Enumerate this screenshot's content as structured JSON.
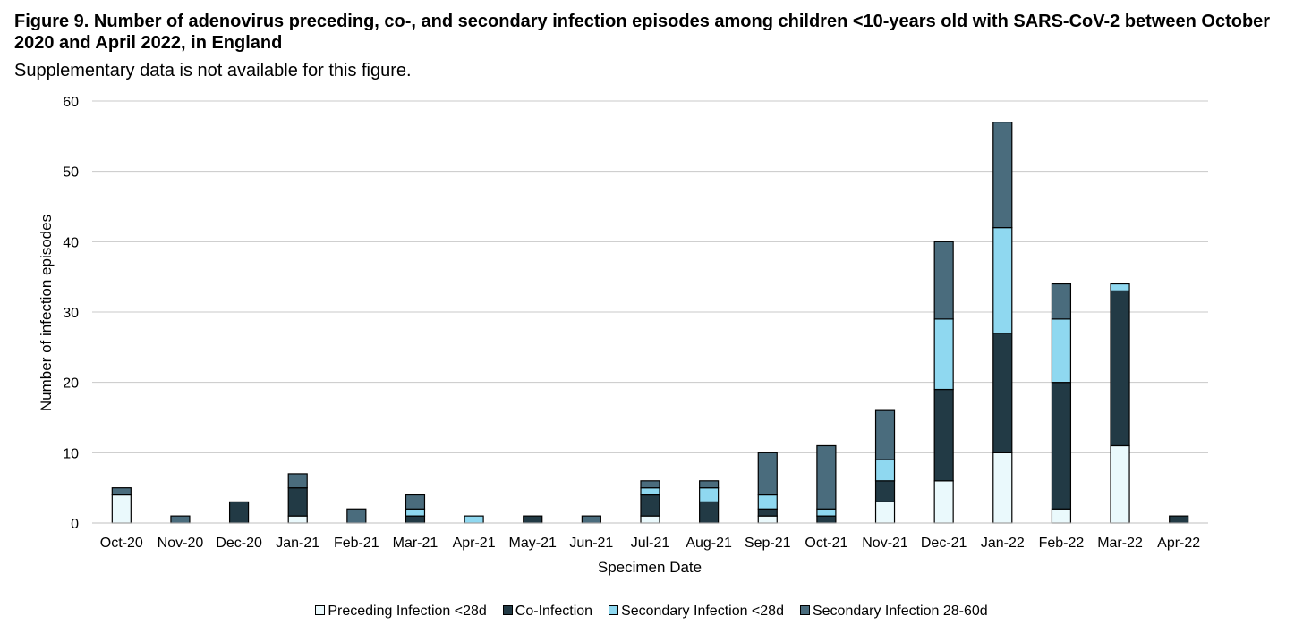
{
  "title": "Figure 9. Number of adenovirus preceding, co-, and secondary infection episodes among children <10-years old with SARS-CoV-2 between October 2020 and April 2022, in England",
  "subtitle": "Supplementary data is not available for this figure.",
  "chart_data": {
    "type": "bar",
    "stacked": true,
    "xlabel": "Specimen Date",
    "ylabel": "Number of infection episodes",
    "ylim": [
      0,
      60
    ],
    "yticks": [
      0,
      10,
      20,
      30,
      40,
      50,
      60
    ],
    "grid": true,
    "legend_position": "bottom",
    "categories": [
      "Oct-20",
      "Nov-20",
      "Dec-20",
      "Jan-21",
      "Feb-21",
      "Mar-21",
      "Apr-21",
      "May-21",
      "Jun-21",
      "Jul-21",
      "Aug-21",
      "Sep-21",
      "Oct-21",
      "Nov-21",
      "Dec-21",
      "Jan-22",
      "Feb-22",
      "Mar-22",
      "Apr-22"
    ],
    "series": [
      {
        "name": "Preceding Infection <28d",
        "color": "#eaf9fc",
        "values": [
          4,
          0,
          0,
          1,
          0,
          0,
          0,
          0,
          0,
          1,
          0,
          1,
          0,
          3,
          6,
          10,
          2,
          11,
          0
        ]
      },
      {
        "name": "Co-Infection",
        "color": "#223a45",
        "values": [
          0,
          0,
          3,
          4,
          0,
          1,
          0,
          1,
          0,
          3,
          3,
          1,
          1,
          3,
          13,
          17,
          18,
          22,
          1
        ]
      },
      {
        "name": "Secondary Infection <28d",
        "color": "#8fd8f0",
        "values": [
          0,
          0,
          0,
          0,
          0,
          1,
          1,
          0,
          0,
          1,
          2,
          2,
          1,
          3,
          10,
          15,
          9,
          1,
          0
        ]
      },
      {
        "name": "Secondary Infection 28-60d",
        "color": "#4a6c7d",
        "values": [
          1,
          1,
          0,
          2,
          2,
          2,
          0,
          0,
          1,
          1,
          1,
          6,
          9,
          7,
          11,
          15,
          5,
          0,
          0
        ]
      }
    ]
  }
}
